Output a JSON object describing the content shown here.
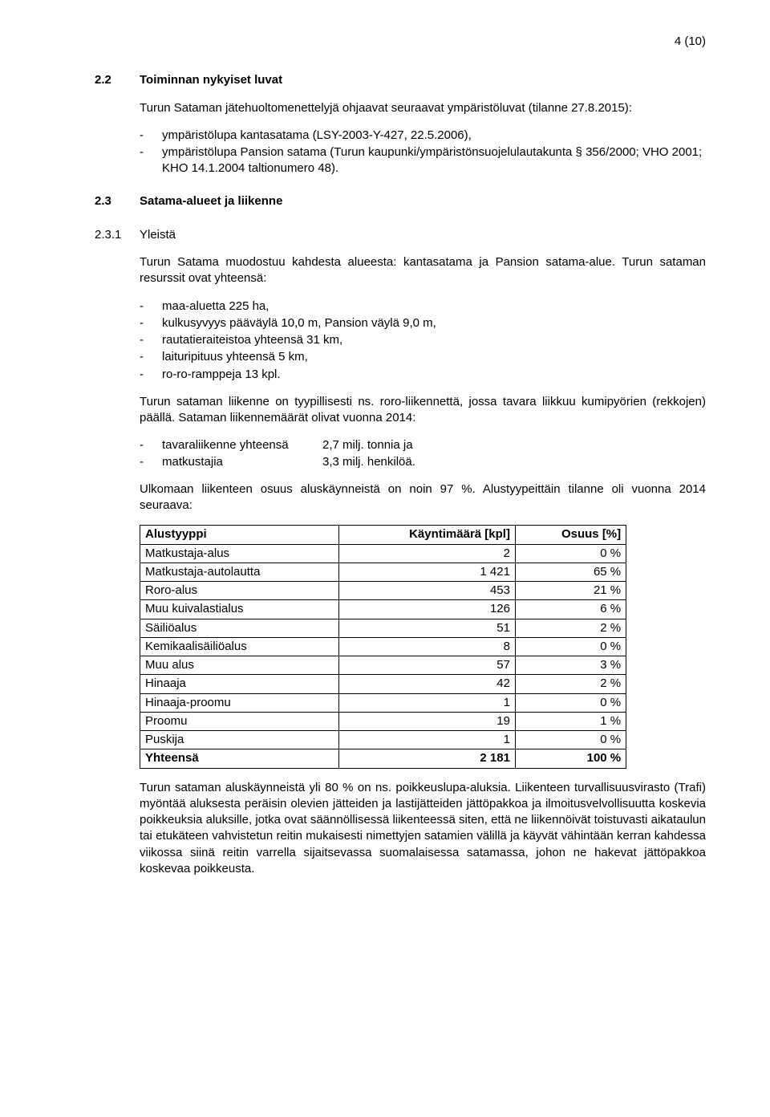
{
  "page_number": "4 (10)",
  "s22": {
    "num": "2.2",
    "title": "Toiminnan nykyiset luvat",
    "intro": "Turun Sataman jätehuoltomenettelyjä ohjaavat seuraavat ympäristöluvat (tilanne 27.8.2015):",
    "bullets": [
      "ympäristölupa kantasatama (LSY-2003-Y-427, 22.5.2006),",
      "ympäristölupa Pansion satama (Turun kaupunki/ympäristönsuojelulautakunta § 356/2000; VHO 2001; KHO 14.1.2004 taltionumero 48)."
    ]
  },
  "s23": {
    "num": "2.3",
    "title": "Satama-alueet ja liikenne"
  },
  "s231": {
    "num": "2.3.1",
    "title": "Yleistä",
    "p1": "Turun Satama muodostuu kahdesta alueesta: kantasatama ja Pansion satama-alue. Turun sataman resurssit ovat yhteensä:",
    "resources": [
      "maa-aluetta 225 ha,",
      "kulkusyvyys pääväylä 10,0 m, Pansion väylä 9,0 m,",
      "rautatieraiteistoa yhteensä 31 km,",
      "laituripituus yhteensä 5 km,",
      "ro-ro-ramppeja 13 kpl."
    ],
    "p2": "Turun sataman liikenne on tyypillisesti ns. roro-liikennettä, jossa tavara liikkuu kumipyörien (rekkojen) päällä. Sataman liikennemäärät olivat vuonna 2014:",
    "traffic": [
      {
        "label": "tavaraliikenne yhteensä",
        "value": "2,7 milj. tonnia ja"
      },
      {
        "label": "matkustajia",
        "value": "3,3 milj. henkilöä."
      }
    ],
    "p3": "Ulkomaan liikenteen osuus aluskäynneistä on noin 97 %. Alustyypeittäin tilanne oli vuonna 2014 seuraava:"
  },
  "table": {
    "columns": [
      "Alustyyppi",
      "Käyntimäärä [kpl]",
      "Osuus [%]"
    ],
    "rows": [
      [
        "Matkustaja-alus",
        "2",
        "0 %"
      ],
      [
        "Matkustaja-autolautta",
        "1 421",
        "65 %"
      ],
      [
        "Roro-alus",
        "453",
        "21 %"
      ],
      [
        "Muu kuivalastialus",
        "126",
        "6 %"
      ],
      [
        "Säiliöalus",
        "51",
        "2 %"
      ],
      [
        "Kemikaalisäiliöalus",
        "8",
        "0 %"
      ],
      [
        "Muu alus",
        "57",
        "3 %"
      ],
      [
        "Hinaaja",
        "42",
        "2 %"
      ],
      [
        "Hinaaja-proomu",
        "1",
        "0 %"
      ],
      [
        "Proomu",
        "19",
        "1 %"
      ],
      [
        "Puskija",
        "1",
        "0 %"
      ]
    ],
    "total": [
      "Yhteensä",
      "2 181",
      "100 %"
    ]
  },
  "final_para": "Turun sataman aluskäynneistä yli 80 % on ns. poikkeuslupa-aluksia. Liikenteen turvallisuusvirasto (Trafi) myöntää aluksesta peräisin olevien jätteiden ja lastijätteiden jättöpakkoa ja ilmoitusvelvollisuutta koskevia poikkeuksia aluksille, jotka ovat säännöllisessä liikenteessä siten, että ne liikennöivät toistuvasti aikataulun tai etukäteen vahvistetun reitin mukaisesti nimettyjen satamien välillä ja käyvät vähintään kerran kahdessa viikossa siinä reitin varrella sijaitsevassa suomalaisessa satamassa, johon ne hakevat jättöpakkoa koskevaa poikkeusta."
}
